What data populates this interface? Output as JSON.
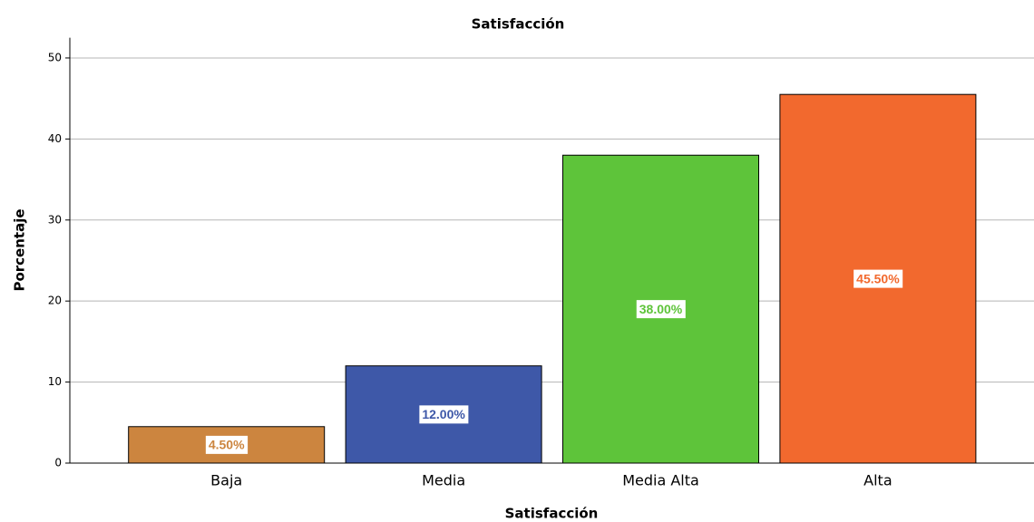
{
  "chart_data": {
    "type": "bar",
    "title": "Satisfacción",
    "x_label": "Satisfacción",
    "y_label": "Porcentaje",
    "categories": [
      "Baja",
      "Media",
      "Media Alta",
      "Alta"
    ],
    "values": [
      4.5,
      12.0,
      38.0,
      45.5
    ],
    "value_labels": [
      "4.50%",
      "12.00%",
      "38.00%",
      "45.50%"
    ],
    "colors": [
      "#cc853f",
      "#3e58a8",
      "#5ec43a",
      "#f2692e"
    ],
    "ylim": [
      0,
      52.5
    ],
    "yticks": [
      0,
      10,
      20,
      30,
      40,
      50
    ],
    "grid": true
  }
}
